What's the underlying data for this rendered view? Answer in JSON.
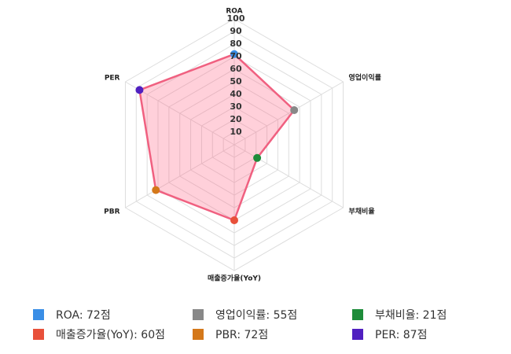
{
  "chart_data": {
    "type": "radar",
    "categories": [
      "ROA",
      "영업이익률",
      "부채비율",
      "매출증가율(YoY)",
      "PBR",
      "PER"
    ],
    "values": [
      72,
      55,
      21,
      60,
      72,
      87
    ],
    "point_colors": [
      "#3a8ee6",
      "#888888",
      "#1e8c3a",
      "#e8503a",
      "#d4781a",
      "#5020c0"
    ],
    "legend_labels": [
      "ROA: 72점",
      "영업이익률: 55점",
      "부채비율: 21점",
      "매출증가율(YoY): 60점",
      "PBR: 72점",
      "PER: 87점"
    ],
    "color": "#f06080",
    "rlim": [
      0,
      100
    ],
    "rticks": [
      10,
      20,
      30,
      40,
      50,
      60,
      70,
      80,
      90,
      100
    ],
    "grid": true
  }
}
